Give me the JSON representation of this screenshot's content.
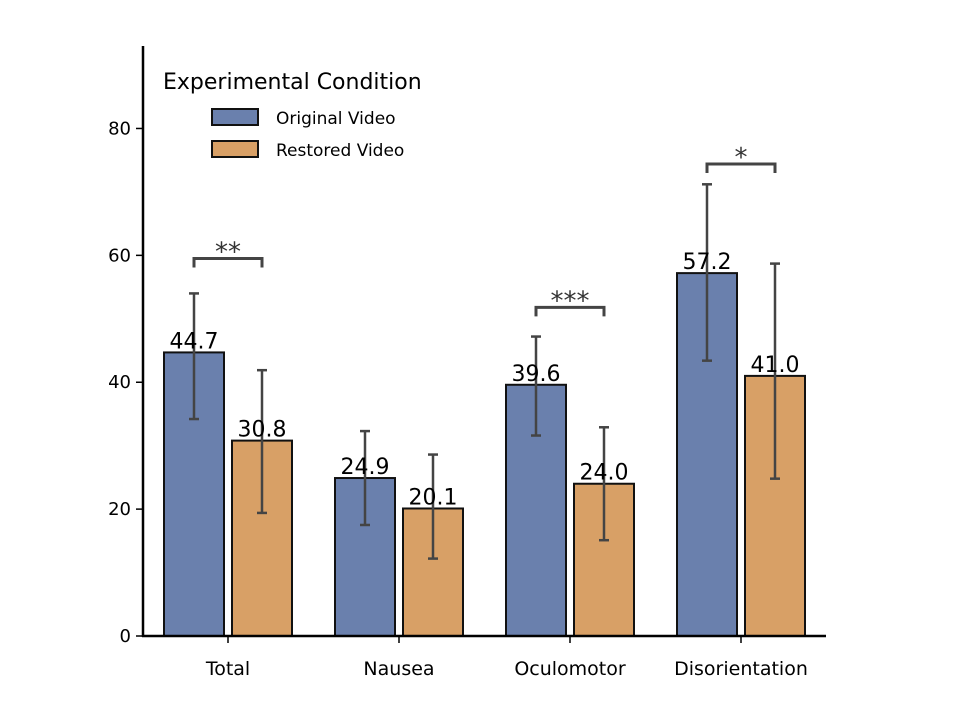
{
  "chart_data": {
    "type": "bar",
    "categories": [
      "Total",
      "Nausea",
      "Oculomotor",
      "Disorientation"
    ],
    "series": [
      {
        "name": "Original Video",
        "color": "#6a80ad",
        "values": [
          44.7,
          24.9,
          39.6,
          57.2
        ],
        "error_low": [
          34.2,
          17.5,
          31.6,
          43.4
        ],
        "error_high": [
          54.0,
          32.3,
          47.2,
          71.2
        ],
        "labels": [
          "44.7",
          "24.9",
          "39.6",
          "57.2"
        ]
      },
      {
        "name": "Restored Video",
        "color": "#d8a066",
        "values": [
          30.8,
          20.1,
          24.0,
          41.0
        ],
        "error_low": [
          19.4,
          12.2,
          15.1,
          24.8
        ],
        "error_high": [
          41.9,
          28.6,
          32.9,
          58.7
        ],
        "labels": [
          "30.8",
          "20.1",
          "24.0",
          "41.0"
        ]
      }
    ],
    "significance": [
      {
        "category": "Total",
        "label": "**",
        "y": 59.5
      },
      {
        "category": "Nausea",
        "label": "",
        "y": null
      },
      {
        "category": "Oculomotor",
        "label": "***",
        "y": 51.8
      },
      {
        "category": "Disorientation",
        "label": "*",
        "y": 74.4
      }
    ],
    "legend_title": "Experimental Condition",
    "legend_position": "top-left",
    "xlabel": "",
    "ylabel": "",
    "ylim": [
      0,
      93
    ],
    "yticks": [
      "0",
      "20",
      "40",
      "60",
      "80"
    ],
    "grid": false
  }
}
